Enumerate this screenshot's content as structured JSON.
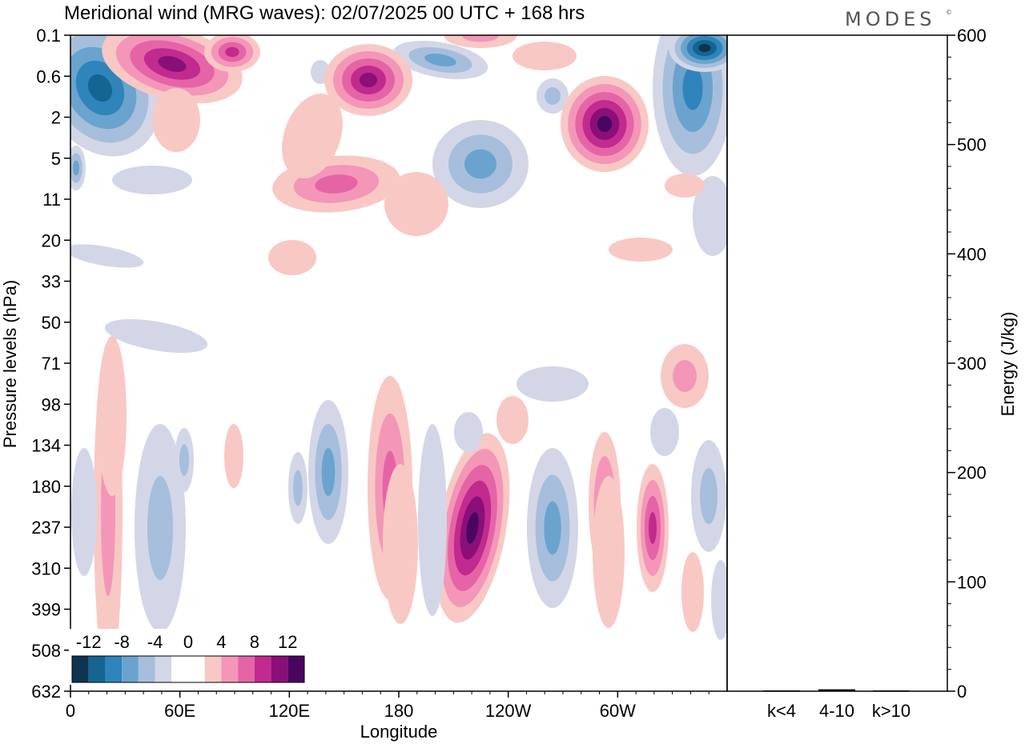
{
  "header": {
    "title": "Meridional wind (MRG waves):  02/07/2025  00 UTC  + 168 hrs",
    "brand": "MODES",
    "brand_mark": "©"
  },
  "chart_data": [
    {
      "type": "heatmap",
      "title": "Meridional wind (MRG waves):  02/07/2025  00 UTC  + 168 hrs",
      "xlabel": "Longitude",
      "ylabel": "Pressure levels (hPa)",
      "x_ticks": [
        {
          "lon": 0,
          "label": "0"
        },
        {
          "lon": 60,
          "label": "60E"
        },
        {
          "lon": 120,
          "label": "120E"
        },
        {
          "lon": 180,
          "label": "180"
        },
        {
          "lon": 240,
          "label": "120W"
        },
        {
          "lon": 300,
          "label": "60W"
        }
      ],
      "xlim": [
        0,
        360
      ],
      "y_levels": [
        "0.1",
        "0.6",
        "2",
        "5",
        "11",
        "20",
        "33",
        "50",
        "71",
        "98",
        "134",
        "180",
        "237",
        "310",
        "399",
        "508",
        "632"
      ],
      "colorbar": {
        "labels": [
          "-12",
          "-8",
          "-4",
          "0",
          "4",
          "8",
          "12"
        ],
        "colors": [
          "#0d3450",
          "#146592",
          "#2f84bb",
          "#6aa3cd",
          "#a6bedb",
          "#d3d6e7",
          "#ffffff",
          "#ffffff",
          "#f8c8c5",
          "#f496b8",
          "#e564a6",
          "#c12a8e",
          "#8a0f78",
          "#4a0561"
        ]
      },
      "features": [
        {
          "sign": "positive",
          "lon": 50,
          "level": "0.1",
          "peak": 14
        },
        {
          "sign": "positive",
          "lon": 165,
          "level": "0.6",
          "peak": 14
        },
        {
          "sign": "positive",
          "lon": 286,
          "level": "2",
          "peak": 14
        },
        {
          "sign": "positive",
          "lon": 150,
          "level": "11",
          "peak": 8
        },
        {
          "sign": "negative",
          "lon": 22,
          "level": "2",
          "peak": -12
        },
        {
          "sign": "negative",
          "lon": 355,
          "level": "0.1",
          "peak": -14
        },
        {
          "sign": "positive",
          "lon": 224,
          "level": "237",
          "peak": 14
        },
        {
          "sign": "positive",
          "lon": 175,
          "level": "180",
          "peak": 8
        },
        {
          "sign": "positive",
          "lon": 293,
          "level": "180",
          "peak": 8
        },
        {
          "sign": "positive",
          "lon": 322,
          "level": "237",
          "peak": 8
        },
        {
          "sign": "negative",
          "lon": 143,
          "level": "180",
          "peak": -8
        },
        {
          "sign": "negative",
          "lon": 266,
          "level": "237",
          "peak": -8
        }
      ]
    },
    {
      "type": "bar",
      "title": "",
      "categories": [
        "k<4",
        "4-10",
        "k>10"
      ],
      "values": [
        0,
        1,
        0
      ],
      "ylabel": "Energy (J/kg)",
      "ylim": [
        0,
        600
      ],
      "y_ticks": [
        "0",
        "100",
        "200",
        "300",
        "400",
        "500",
        "600"
      ]
    }
  ]
}
